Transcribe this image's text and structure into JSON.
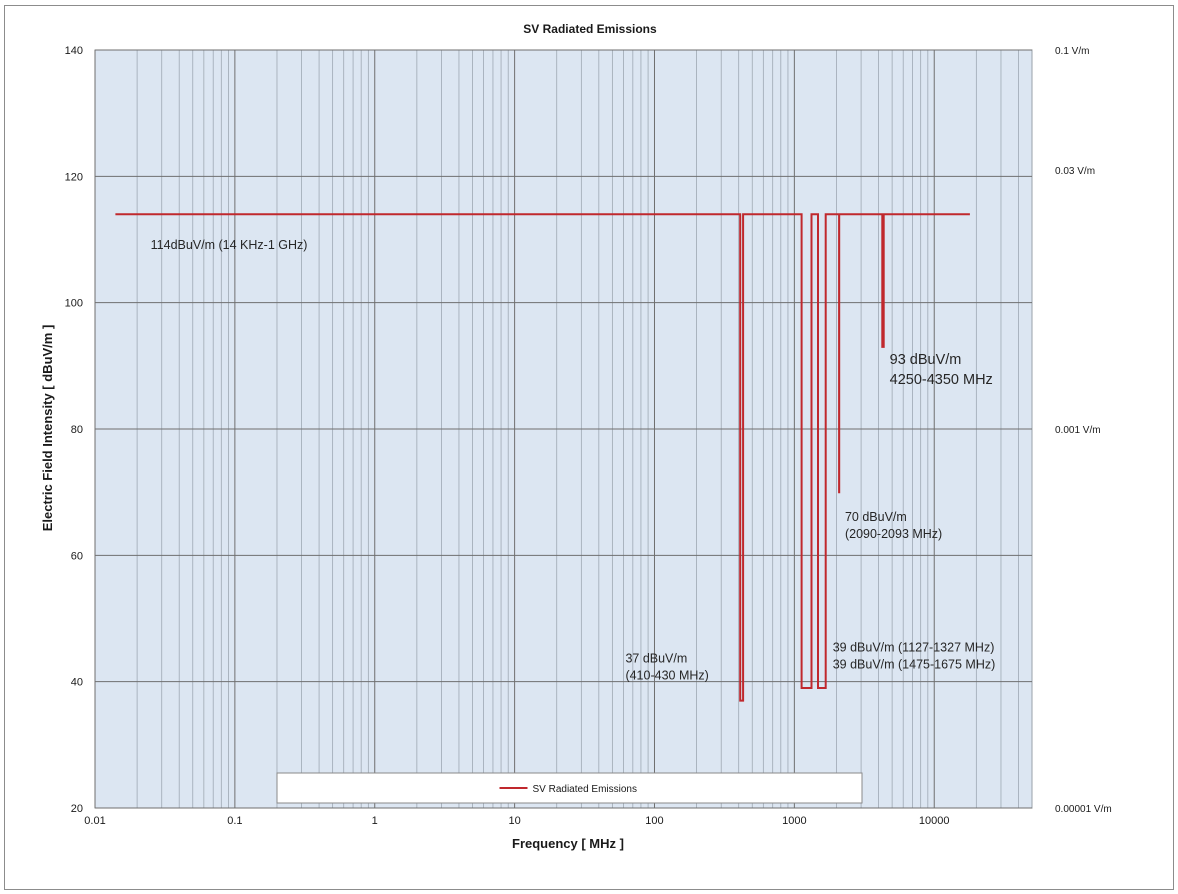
{
  "chart_data": {
    "type": "line",
    "title": "SV Radiated Emissions",
    "xlabel": "Frequency [ MHz ]",
    "ylabel": "Electric Field Intensity  [ dBuV/m ]",
    "x_scale": "log",
    "xlim": [
      0.01,
      50000
    ],
    "ylim": [
      20,
      140
    ],
    "x_ticks": [
      {
        "v": 0.01,
        "label": "0.01"
      },
      {
        "v": 0.1,
        "label": "0.1"
      },
      {
        "v": 1,
        "label": "1"
      },
      {
        "v": 10,
        "label": "10"
      },
      {
        "v": 100,
        "label": "100"
      },
      {
        "v": 1000,
        "label": "1000"
      },
      {
        "v": 10000,
        "label": "10000"
      }
    ],
    "y_ticks": [
      {
        "v": 20,
        "label": "20"
      },
      {
        "v": 40,
        "label": "40"
      },
      {
        "v": 60,
        "label": "60"
      },
      {
        "v": 80,
        "label": "80"
      },
      {
        "v": 100,
        "label": "100"
      },
      {
        "v": 120,
        "label": "120"
      },
      {
        "v": 140,
        "label": "140"
      }
    ],
    "right_ticks": [
      {
        "v": 140,
        "label": "0.1 V/m"
      },
      {
        "v": 121,
        "label": "0.03 V/m"
      },
      {
        "v": 80,
        "label": "0.001 V/m"
      },
      {
        "v": 20,
        "label": "0.00001 V/m"
      }
    ],
    "grid": true,
    "legend": {
      "position": "bottom-center",
      "entries": [
        "SV Radiated Emissions"
      ]
    },
    "series": [
      {
        "name": "SV Radiated Emissions",
        "color": "#c0282d",
        "x": [
          0.014,
          410,
          410,
          430,
          430,
          1127,
          1127,
          1327,
          1327,
          1475,
          1475,
          1675,
          1675,
          2090,
          2090,
          2093,
          2093,
          4250,
          4250,
          4350,
          4350,
          18000
        ],
        "y": [
          114,
          114,
          37,
          37,
          114,
          114,
          39,
          39,
          114,
          114,
          39,
          39,
          114,
          114,
          70,
          70,
          114,
          114,
          93,
          93,
          114,
          114
        ]
      }
    ],
    "annotations": [
      {
        "lines": [
          "114dBuV/m (14 KHz-1 GHz)"
        ],
        "x": 0.025,
        "y": 108.5,
        "size": "normal"
      },
      {
        "lines": [
          "93 dBuV/m",
          "4250-4350 MHz"
        ],
        "x": 4800,
        "y": 90.3,
        "size": "big"
      },
      {
        "lines": [
          "70 dBuV/m",
          "(2090-2093 MHz)"
        ],
        "x": 2300,
        "y": 65.4,
        "size": "normal"
      },
      {
        "lines": [
          "39 dBuV/m (1127-1327 MHz)",
          "39 dBuV/m (1475-1675 MHz)"
        ],
        "x": 1880,
        "y": 44.8,
        "size": "normal"
      },
      {
        "lines": [
          "37 dBuV/m",
          "(410-430 MHz)"
        ],
        "x": 62,
        "y": 43.0,
        "size": "normal"
      }
    ]
  }
}
